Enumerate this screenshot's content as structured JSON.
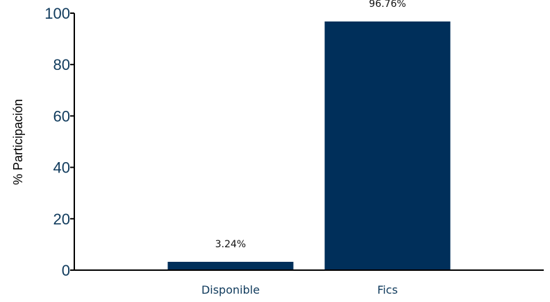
{
  "chart_data": {
    "type": "bar",
    "categories": [
      "Disponible",
      "Fics"
    ],
    "values": [
      3.24,
      96.76
    ],
    "data_labels": [
      "3.24%",
      "96.76%"
    ],
    "title": "",
    "xlabel": "",
    "ylabel": "% Participación",
    "ylim": [
      0,
      100
    ],
    "yticks": [
      0,
      20,
      40,
      60,
      80,
      100
    ],
    "ytick_labels": [
      "0",
      "20",
      "40",
      "60",
      "80",
      "100"
    ],
    "grid": false,
    "legend": "none",
    "bar_color": "#002f5a",
    "tick_label_color": "#0f3a5c"
  }
}
